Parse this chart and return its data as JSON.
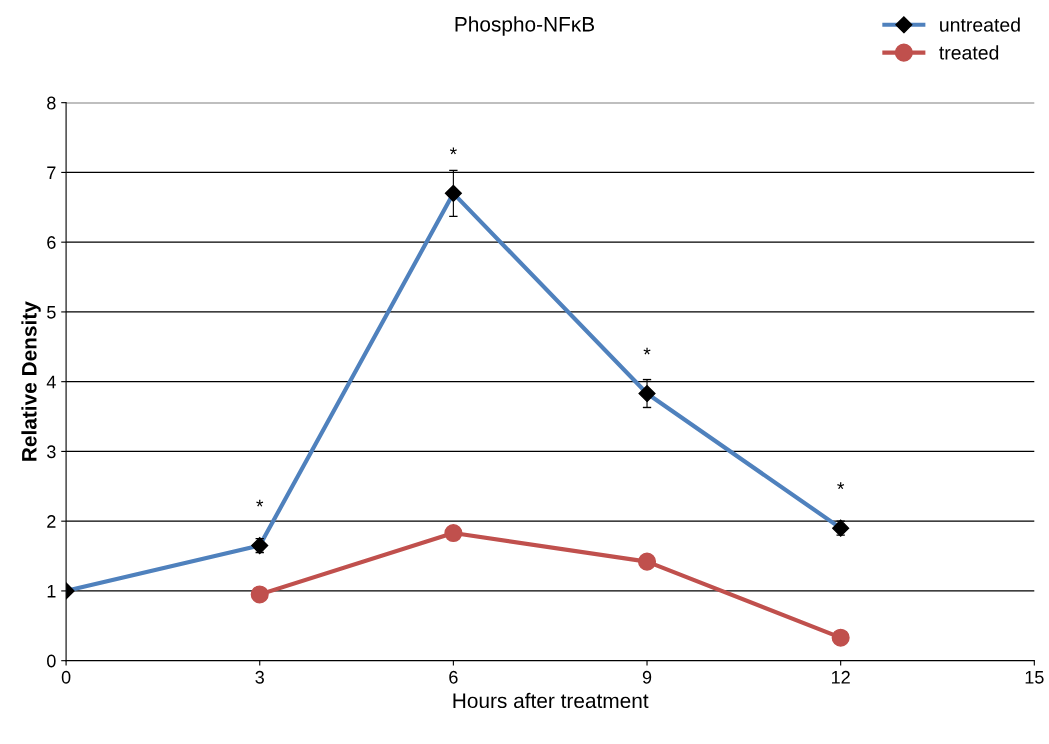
{
  "chart_data": {
    "type": "line",
    "title": "Phospho-NFκB",
    "xlabel": "Hours after treatment",
    "ylabel": "Relative Density",
    "xlim": [
      0,
      15
    ],
    "xticks": [
      0,
      3,
      6,
      9,
      12,
      15
    ],
    "ylim": [
      0,
      8
    ],
    "yticks": [
      0,
      1,
      2,
      3,
      4,
      5,
      6,
      7,
      8
    ],
    "grid": "y",
    "legend": "top right",
    "series": [
      {
        "name": "untreated",
        "color": "#4f81bd",
        "marker": "diamond",
        "x": [
          0,
          3,
          6,
          9,
          12
        ],
        "values": [
          1.0,
          1.65,
          6.7,
          3.83,
          1.9
        ],
        "errors": [
          null,
          0.1,
          0.33,
          0.2,
          0.1
        ]
      },
      {
        "name": "treated",
        "color": "#c0504d",
        "marker": "circle",
        "x": [
          3,
          6,
          9,
          12
        ],
        "values": [
          0.95,
          1.83,
          1.42,
          0.33
        ]
      }
    ],
    "annotations": [
      {
        "text": "*",
        "x": 3,
        "y": 1.65
      },
      {
        "text": "*",
        "x": 6,
        "y": 6.7
      },
      {
        "text": "*",
        "x": 9,
        "y": 3.83
      },
      {
        "text": "*",
        "x": 12,
        "y": 1.9
      }
    ]
  }
}
